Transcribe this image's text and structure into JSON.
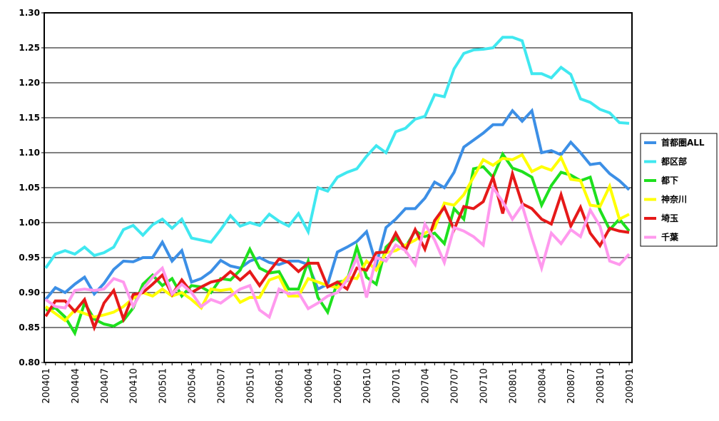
{
  "chart_data": {
    "type": "line",
    "categories": [
      "200401",
      null,
      null,
      "200404",
      null,
      null,
      "200407",
      null,
      null,
      "200410",
      null,
      null,
      "200501",
      null,
      null,
      "200504",
      null,
      null,
      "200507",
      null,
      null,
      "200510",
      null,
      null,
      "200601",
      null,
      null,
      "200604",
      null,
      null,
      "200607",
      null,
      null,
      "200610",
      null,
      null,
      "200701",
      null,
      null,
      "200704",
      null,
      null,
      "200707",
      null,
      null,
      "200710",
      null,
      null,
      "200801",
      null,
      null,
      "200804",
      null,
      null,
      "200807",
      null,
      null,
      "200810",
      null,
      null,
      "200901"
    ],
    "series": [
      {
        "name": "首都圏ALL",
        "color": "#3c8fe6",
        "values": [
          0.89,
          0.907,
          0.9,
          0.912,
          0.922,
          0.898,
          0.913,
          0.933,
          0.945,
          0.944,
          0.95,
          0.95,
          0.972,
          0.945,
          0.96,
          0.915,
          0.92,
          0.93,
          0.946,
          0.938,
          0.935,
          0.945,
          0.95,
          0.943,
          0.94,
          0.945,
          0.945,
          0.94,
          0.905,
          0.912,
          0.958,
          0.965,
          0.973,
          0.987,
          0.94,
          0.993,
          1.005,
          1.02,
          1.02,
          1.035,
          1.058,
          1.05,
          1.072,
          1.108,
          1.118,
          1.128,
          1.14,
          1.14,
          1.16,
          1.145,
          1.16,
          1.1,
          1.103,
          1.097,
          1.115,
          1.1,
          1.083,
          1.085,
          1.07,
          1.06,
          1.047
        ]
      },
      {
        "name": "都区部",
        "color": "#40e8f0",
        "values": [
          0.935,
          0.955,
          0.96,
          0.955,
          0.965,
          0.953,
          0.957,
          0.965,
          0.99,
          0.996,
          0.982,
          0.997,
          1.005,
          0.992,
          1.005,
          0.978,
          0.975,
          0.972,
          0.99,
          1.01,
          0.995,
          1.0,
          0.996,
          1.012,
          1.002,
          0.995,
          1.013,
          0.987,
          1.05,
          1.045,
          1.065,
          1.072,
          1.077,
          1.095,
          1.11,
          1.1,
          1.13,
          1.135,
          1.148,
          1.152,
          1.183,
          1.18,
          1.22,
          1.242,
          1.247,
          1.248,
          1.25,
          1.265,
          1.265,
          1.26,
          1.213,
          1.213,
          1.207,
          1.222,
          1.212,
          1.177,
          1.172,
          1.162,
          1.157,
          1.143,
          1.142
        ]
      },
      {
        "name": "都下",
        "color": "#1ee01e",
        "values": [
          0.875,
          0.878,
          0.865,
          0.842,
          0.885,
          0.862,
          0.855,
          0.852,
          0.86,
          0.878,
          0.912,
          0.925,
          0.91,
          0.92,
          0.895,
          0.91,
          0.908,
          0.9,
          0.92,
          0.918,
          0.932,
          0.962,
          0.935,
          0.928,
          0.93,
          0.905,
          0.905,
          0.945,
          0.893,
          0.872,
          0.915,
          0.917,
          0.965,
          0.922,
          0.912,
          0.965,
          0.978,
          0.965,
          0.988,
          0.98,
          0.985,
          0.97,
          1.02,
          1.005,
          1.077,
          1.08,
          1.065,
          1.098,
          1.078,
          1.073,
          1.065,
          1.025,
          1.053,
          1.072,
          1.068,
          1.06,
          1.065,
          1.018,
          0.99,
          1.005,
          0.988
        ]
      },
      {
        "name": "神奈川",
        "color": "#ffff00",
        "values": [
          0.88,
          0.87,
          0.86,
          0.875,
          0.87,
          0.865,
          0.868,
          0.872,
          0.88,
          0.892,
          0.9,
          0.895,
          0.905,
          0.895,
          0.9,
          0.89,
          0.878,
          0.905,
          0.903,
          0.905,
          0.886,
          0.893,
          0.893,
          0.918,
          0.923,
          0.895,
          0.895,
          0.92,
          0.915,
          0.91,
          0.907,
          0.922,
          0.92,
          0.945,
          0.932,
          0.957,
          0.96,
          0.968,
          0.975,
          0.985,
          0.992,
          1.028,
          1.025,
          1.04,
          1.065,
          1.09,
          1.082,
          1.092,
          1.09,
          1.097,
          1.073,
          1.08,
          1.075,
          1.093,
          1.062,
          1.06,
          1.025,
          1.023,
          1.052,
          1.005,
          1.012
        ]
      },
      {
        "name": "埼玉",
        "color": "#e61919",
        "values": [
          0.866,
          0.888,
          0.888,
          0.873,
          0.89,
          0.85,
          0.885,
          0.903,
          0.862,
          0.897,
          0.9,
          0.912,
          0.925,
          0.897,
          0.918,
          0.9,
          0.908,
          0.915,
          0.918,
          0.93,
          0.918,
          0.93,
          0.91,
          0.93,
          0.948,
          0.943,
          0.93,
          0.942,
          0.942,
          0.908,
          0.915,
          0.905,
          0.935,
          0.932,
          0.957,
          0.958,
          0.985,
          0.96,
          0.99,
          0.962,
          1.003,
          1.022,
          0.99,
          1.023,
          1.02,
          1.03,
          1.065,
          1.013,
          1.07,
          1.027,
          1.02,
          1.005,
          0.998,
          1.04,
          0.995,
          1.022,
          0.985,
          0.967,
          0.992,
          0.988,
          0.986
        ]
      },
      {
        "name": "千葉",
        "color": "#ff99ee",
        "values": [
          0.89,
          0.88,
          0.878,
          0.903,
          0.905,
          0.903,
          0.905,
          0.92,
          0.915,
          0.88,
          0.905,
          0.922,
          0.935,
          0.898,
          0.912,
          0.9,
          0.88,
          0.89,
          0.885,
          0.895,
          0.905,
          0.91,
          0.875,
          0.865,
          0.905,
          0.898,
          0.9,
          0.877,
          0.885,
          0.895,
          0.9,
          0.918,
          0.95,
          0.893,
          0.95,
          0.945,
          0.968,
          0.96,
          0.94,
          0.998,
          0.975,
          0.943,
          0.993,
          0.988,
          0.98,
          0.968,
          1.05,
          1.03,
          1.005,
          1.025,
          0.978,
          0.935,
          0.985,
          0.97,
          0.99,
          0.98,
          1.018,
          0.995,
          0.945,
          0.94,
          0.955
        ]
      }
    ],
    "ylim": [
      0.8,
      1.3
    ],
    "yticks": [
      {
        "value": 0.8,
        "label": "0.80"
      },
      {
        "value": 0.85,
        "label": "0.85"
      },
      {
        "value": 0.9,
        "label": "0.90"
      },
      {
        "value": 0.95,
        "label": "0.95"
      },
      {
        "value": 1.0,
        "label": "1.00"
      },
      {
        "value": 1.05,
        "label": "1.05"
      },
      {
        "value": 1.1,
        "label": "1.10"
      },
      {
        "value": 1.15,
        "label": "1.15"
      },
      {
        "value": 1.2,
        "label": "1.20"
      },
      {
        "value": 1.25,
        "label": "1.25"
      },
      {
        "value": 1.3,
        "label": "1.30"
      }
    ],
    "grid": true,
    "legend": "right"
  }
}
